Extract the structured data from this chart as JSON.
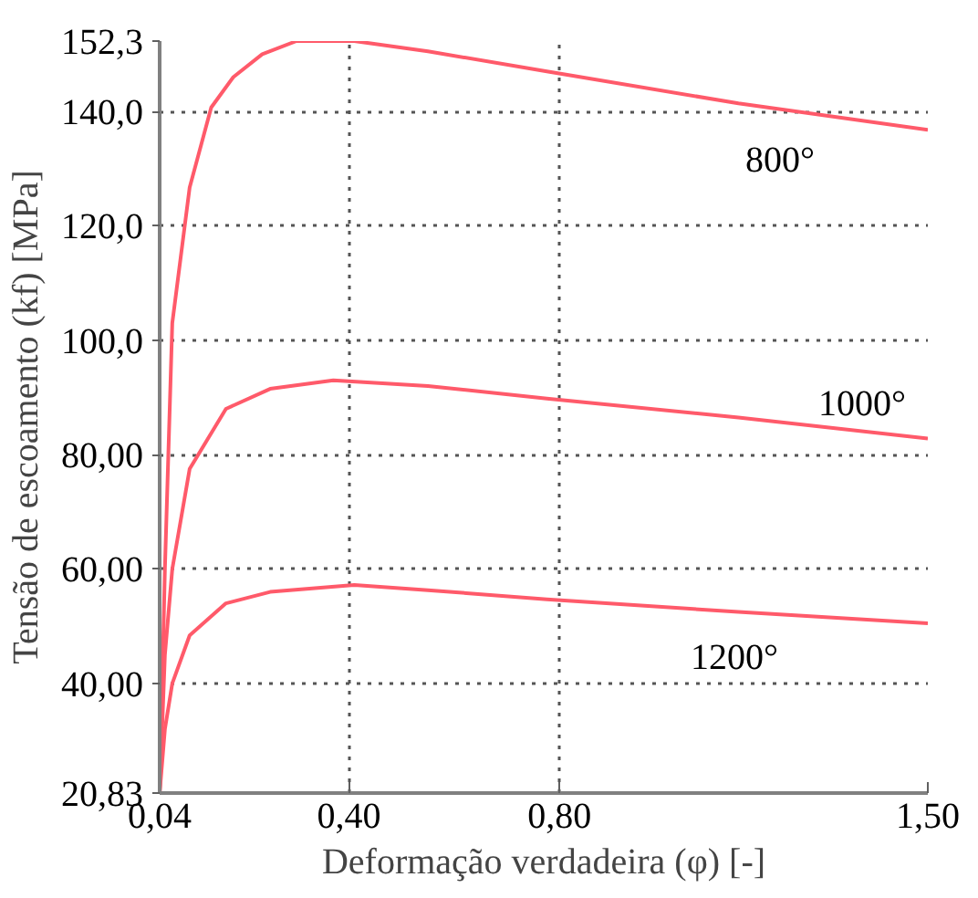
{
  "chart_data": {
    "type": "line",
    "xlabel": "Deformação verdadeira (φ) [-]",
    "ylabel": "Tensão de escoamento (kf) [MPa]",
    "xlim": [
      0.04,
      1.5
    ],
    "ylim": [
      20.83,
      152.3
    ],
    "xticks": [
      {
        "value": 0.04,
        "label": "0,04"
      },
      {
        "value": 0.4,
        "label": "0,40"
      },
      {
        "value": 0.8,
        "label": "0,80"
      },
      {
        "value": 1.5,
        "label": "1,50"
      }
    ],
    "yticks": [
      {
        "value": 20.83,
        "label": "20,83"
      },
      {
        "value": 40,
        "label": "40,00"
      },
      {
        "value": 60,
        "label": "60,00"
      },
      {
        "value": 80,
        "label": "80,00"
      },
      {
        "value": 100,
        "label": "100,0"
      },
      {
        "value": 120,
        "label": "120,0"
      },
      {
        "value": 140,
        "label": "140,0"
      },
      {
        "value": 152.3,
        "label": "152,3"
      }
    ],
    "grid": true,
    "line_style": "solid",
    "marker": "none",
    "series": [
      {
        "name": "800°",
        "color": "#ff5a6a",
        "x": [
          0.04,
          0.05,
          0.064,
          0.097,
          0.138,
          0.18,
          0.235,
          0.3,
          0.41,
          0.55,
          0.776,
          1.14,
          1.5
        ],
        "values": [
          20.83,
          60,
          103,
          126.7,
          140.7,
          146,
          150,
          152.3,
          152.3,
          150.5,
          147,
          141.4,
          136.8
        ]
      },
      {
        "name": "1000°",
        "color": "#ff5a6a",
        "x": [
          0.04,
          0.05,
          0.064,
          0.097,
          0.166,
          0.25,
          0.37,
          0.55,
          0.776,
          1.14,
          1.5
        ],
        "values": [
          20.83,
          45,
          60,
          77.5,
          88,
          91.5,
          93,
          92,
          89.8,
          86.5,
          82.8
        ]
      },
      {
        "name": "1200°",
        "color": "#ff5a6a",
        "x": [
          0.04,
          0.05,
          0.064,
          0.097,
          0.166,
          0.25,
          0.41,
          0.55,
          0.776,
          1.14,
          1.5
        ],
        "values": [
          20.83,
          32,
          40,
          48.4,
          54,
          56,
          57.2,
          56.3,
          54.7,
          52.5,
          50.5
        ]
      }
    ]
  }
}
